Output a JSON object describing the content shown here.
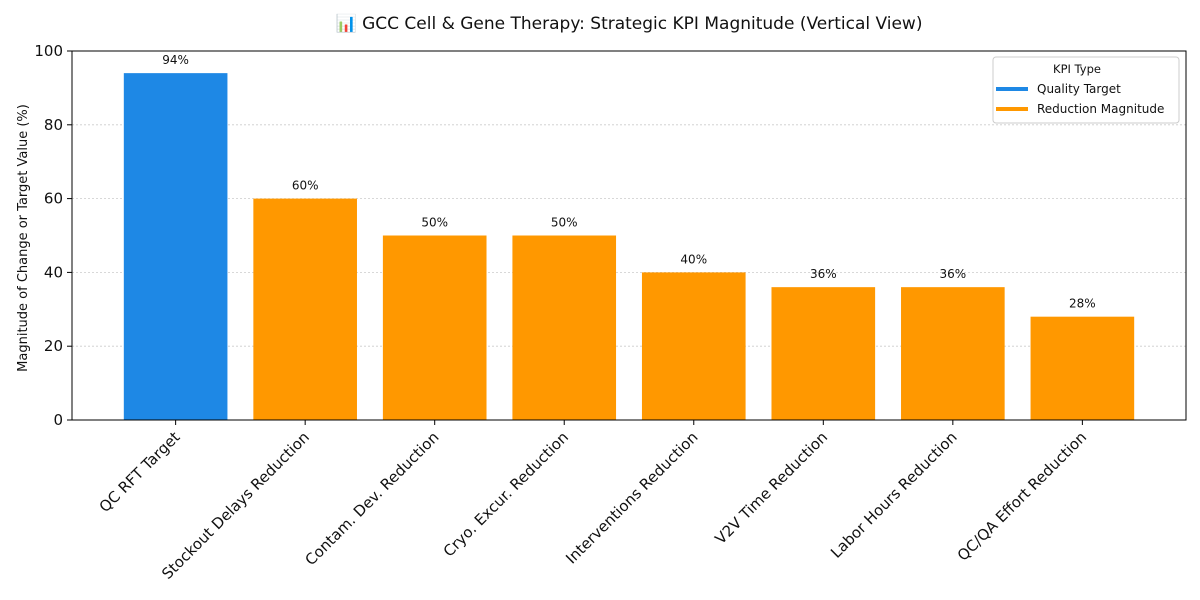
{
  "chart_data": {
    "type": "bar",
    "title": "📊 GCC Cell & Gene Therapy: Strategic KPI Magnitude (Vertical View)",
    "xlabel": "",
    "ylabel": "Magnitude of Change or Target Value (%)",
    "ylim": [
      0,
      100
    ],
    "yticks": [
      "0",
      "20",
      "40",
      "60",
      "80",
      "100"
    ],
    "grid": "y-dotted",
    "legend": {
      "title": "KPI Type",
      "placement": "top-right",
      "entries": [
        {
          "label": "Quality Target",
          "color": "#1E88E5"
        },
        {
          "label": "Reduction Magnitude",
          "color": "#FF9800"
        }
      ]
    },
    "categories": [
      "QC RFT Target",
      "Stockout Delays Reduction",
      "Contam. Dev. Reduction",
      "Cryo. Excur. Reduction",
      "Interventions Reduction",
      "V2V Time Reduction",
      "Labor Hours Reduction",
      "QC/QA Effort Reduction"
    ],
    "values": [
      94,
      60,
      50,
      50,
      40,
      36,
      36,
      28
    ],
    "value_labels": [
      "94%",
      "60%",
      "50%",
      "50%",
      "40%",
      "36%",
      "36%",
      "28%"
    ],
    "kpi_types": [
      "Quality Target",
      "Reduction Magnitude",
      "Reduction Magnitude",
      "Reduction Magnitude",
      "Reduction Magnitude",
      "Reduction Magnitude",
      "Reduction Magnitude",
      "Reduction Magnitude"
    ]
  }
}
